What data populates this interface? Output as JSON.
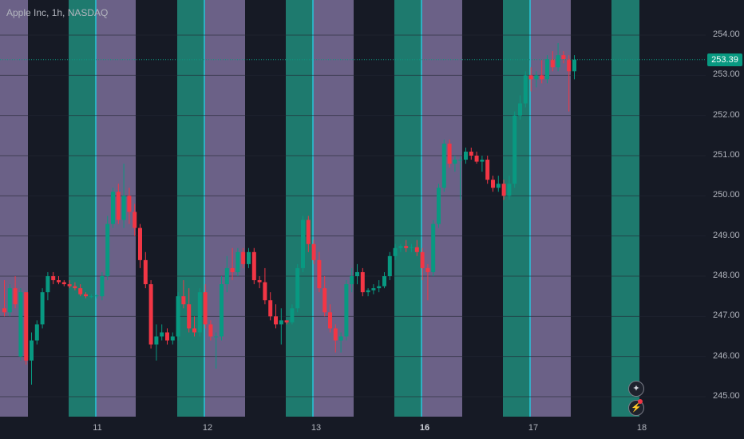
{
  "header": {
    "symbol_title": "Apple Inc, 1h, NASDAQ"
  },
  "price_tag": "253.39",
  "colors": {
    "up": "#089981",
    "down": "#f23645",
    "session_green": "#1e7a6e",
    "session_purple": "#6b6187",
    "session_marker": "#26c6da",
    "background": "#161a25",
    "grid": "#232733"
  },
  "icons": {
    "top_control": "sparkle-icon",
    "bottom_control": "lightning-icon"
  },
  "chart_data": {
    "type": "candlestick",
    "title": "Apple Inc, 1h, NASDAQ",
    "last_price": 253.39,
    "ylim": [
      244.5,
      254.4
    ],
    "y_ticks": [
      "254.00",
      "253.00",
      "252.00",
      "251.00",
      "250.00",
      "249.00",
      "248.00",
      "247.00",
      "246.00",
      "245.00"
    ],
    "x_ticks": [
      {
        "label": "11",
        "bold": false
      },
      {
        "label": "12",
        "bold": false
      },
      {
        "label": "13",
        "bold": false
      },
      {
        "label": "16",
        "bold": true
      },
      {
        "label": "17",
        "bold": false
      },
      {
        "label": "18",
        "bold": false
      }
    ],
    "candles": [
      [
        247.2,
        247.9,
        247.0,
        247.1
      ],
      [
        247.1,
        247.8,
        247.0,
        247.7
      ],
      [
        247.7,
        248.0,
        247.2,
        247.3
      ],
      [
        246.0,
        247.7,
        245.9,
        247.6
      ],
      [
        247.6,
        247.6,
        245.8,
        245.9
      ],
      [
        245.9,
        246.6,
        245.3,
        246.4
      ],
      [
        246.4,
        246.9,
        246.3,
        246.8
      ],
      [
        246.8,
        247.7,
        246.7,
        247.6
      ],
      [
        247.6,
        248.1,
        247.4,
        248.0
      ],
      [
        248.0,
        248.1,
        247.8,
        247.9
      ],
      [
        247.9,
        248.0,
        247.8,
        247.85
      ],
      [
        247.85,
        247.9,
        247.75,
        247.8
      ],
      [
        247.8,
        247.9,
        247.7,
        247.75
      ],
      [
        247.75,
        247.85,
        247.65,
        247.7
      ],
      [
        247.7,
        247.8,
        247.5,
        247.55
      ],
      [
        247.55,
        247.6,
        247.45,
        247.5
      ],
      [
        247.5,
        247.55,
        247.45,
        247.5
      ],
      [
        247.5,
        247.55,
        247.45,
        247.52
      ],
      [
        247.5,
        248.1,
        247.4,
        248.0
      ],
      [
        248.0,
        249.5,
        247.9,
        249.3
      ],
      [
        249.3,
        250.2,
        249.2,
        250.1
      ],
      [
        250.1,
        250.3,
        249.3,
        249.4
      ],
      [
        249.4,
        250.8,
        249.2,
        250.0
      ],
      [
        250.0,
        250.2,
        249.3,
        249.6
      ],
      [
        249.6,
        249.8,
        249.0,
        249.2
      ],
      [
        249.2,
        249.3,
        248.2,
        248.4
      ],
      [
        248.4,
        248.6,
        247.7,
        247.8
      ],
      [
        247.8,
        247.9,
        246.2,
        246.3
      ],
      [
        246.3,
        246.8,
        245.9,
        246.5
      ],
      [
        246.5,
        246.8,
        246.4,
        246.6
      ],
      [
        246.6,
        246.7,
        246.3,
        246.4
      ],
      [
        246.4,
        246.6,
        246.3,
        246.5
      ],
      [
        246.5,
        247.6,
        246.4,
        247.5
      ],
      [
        247.5,
        247.9,
        247.2,
        247.3
      ],
      [
        247.3,
        247.7,
        246.6,
        246.7
      ],
      [
        246.7,
        247.0,
        246.5,
        246.6
      ],
      [
        246.6,
        247.7,
        246.5,
        247.6
      ],
      [
        247.6,
        247.8,
        246.7,
        246.8
      ],
      [
        246.8,
        246.9,
        246.4,
        246.5
      ],
      [
        246.5,
        246.6,
        245.7,
        246.5
      ],
      [
        246.5,
        248.0,
        246.4,
        247.8
      ],
      [
        247.8,
        248.5,
        247.6,
        248.2
      ],
      [
        248.2,
        248.7,
        247.9,
        248.1
      ],
      [
        248.1,
        248.7,
        248.0,
        248.6
      ],
      [
        248.6,
        248.7,
        248.2,
        248.3
      ],
      [
        248.3,
        248.7,
        248.2,
        248.6
      ],
      [
        248.6,
        248.7,
        247.8,
        247.9
      ],
      [
        247.9,
        248.0,
        247.7,
        247.85
      ],
      [
        247.85,
        248.2,
        247.3,
        247.4
      ],
      [
        247.4,
        247.6,
        246.9,
        247.0
      ],
      [
        247.0,
        247.3,
        246.7,
        246.8
      ],
      [
        246.8,
        247.2,
        246.3,
        246.9
      ],
      [
        246.9,
        246.9,
        246.8,
        246.85
      ],
      [
        246.85,
        247.3,
        246.8,
        247.2
      ],
      [
        247.2,
        248.3,
        247.1,
        248.2
      ],
      [
        248.2,
        249.5,
        248.1,
        249.4
      ],
      [
        249.4,
        249.5,
        248.6,
        248.8
      ],
      [
        248.8,
        248.9,
        248.3,
        248.4
      ],
      [
        248.4,
        248.6,
        247.6,
        247.7
      ],
      [
        247.7,
        248.0,
        247.0,
        247.1
      ],
      [
        247.1,
        247.3,
        246.6,
        246.7
      ],
      [
        246.7,
        246.8,
        246.1,
        246.4
      ],
      [
        246.4,
        246.6,
        246.1,
        246.5
      ],
      [
        246.5,
        247.9,
        246.4,
        247.8
      ],
      [
        247.8,
        248.2,
        247.6,
        248.0
      ],
      [
        248.0,
        248.3,
        247.8,
        248.1
      ],
      [
        248.1,
        248.2,
        247.5,
        247.6
      ],
      [
        247.6,
        247.7,
        247.5,
        247.65
      ],
      [
        247.65,
        247.8,
        247.55,
        247.7
      ],
      [
        247.7,
        247.9,
        247.6,
        247.75
      ],
      [
        247.75,
        248.1,
        247.7,
        248.0
      ],
      [
        248.0,
        248.6,
        247.9,
        248.5
      ],
      [
        248.5,
        248.8,
        248.4,
        248.7
      ],
      [
        248.7,
        248.8,
        248.6,
        248.75
      ],
      [
        248.75,
        248.9,
        248.6,
        248.7
      ],
      [
        248.7,
        248.8,
        248.6,
        248.72
      ],
      [
        248.72,
        248.9,
        248.5,
        248.6
      ],
      [
        248.6,
        248.7,
        247.9,
        248.2
      ],
      [
        248.2,
        248.3,
        247.4,
        248.1
      ],
      [
        248.1,
        249.4,
        248.0,
        249.3
      ],
      [
        249.3,
        250.3,
        249.2,
        250.2
      ],
      [
        250.2,
        251.4,
        250.1,
        251.3
      ],
      [
        251.3,
        251.4,
        250.7,
        250.8
      ],
      [
        250.8,
        251.0,
        250.6,
        250.9
      ],
      [
        250.9,
        251.0,
        249.9,
        250.9
      ],
      [
        250.9,
        251.2,
        250.8,
        251.1
      ],
      [
        251.1,
        251.2,
        250.9,
        251.0
      ],
      [
        251.0,
        251.1,
        250.8,
        250.85
      ],
      [
        250.85,
        251.0,
        250.6,
        250.9
      ],
      [
        250.9,
        251.0,
        250.3,
        250.4
      ],
      [
        250.4,
        250.5,
        250.1,
        250.2
      ],
      [
        250.2,
        250.5,
        250.1,
        250.3
      ],
      [
        250.3,
        250.4,
        249.9,
        250.0
      ],
      [
        250.0,
        250.5,
        249.9,
        250.3
      ],
      [
        250.3,
        252.1,
        250.2,
        252.0
      ],
      [
        252.0,
        252.5,
        251.9,
        252.3
      ],
      [
        252.3,
        253.1,
        252.2,
        253.0
      ],
      [
        253.0,
        253.2,
        252.6,
        252.9
      ],
      [
        252.9,
        253.1,
        252.7,
        253.0
      ],
      [
        253.0,
        253.4,
        252.8,
        252.9
      ],
      [
        252.9,
        253.5,
        252.8,
        253.4
      ],
      [
        253.4,
        253.6,
        253.1,
        253.2
      ],
      [
        253.2,
        253.8,
        253.1,
        253.5
      ],
      [
        253.5,
        253.6,
        253.3,
        253.4
      ],
      [
        253.4,
        253.5,
        252.1,
        253.1
      ],
      [
        253.1,
        253.5,
        252.9,
        253.39
      ]
    ]
  }
}
